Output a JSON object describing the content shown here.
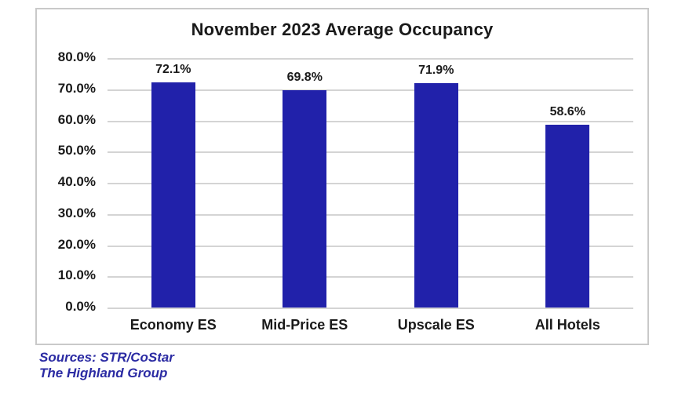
{
  "chart_data": {
    "type": "bar",
    "title": "November 2023 Average Occupancy",
    "categories": [
      "Economy ES",
      "Mid-Price ES",
      "Upscale ES",
      "All Hotels"
    ],
    "values": [
      72.1,
      69.8,
      71.9,
      58.6
    ],
    "value_labels": [
      "72.1%",
      "69.8%",
      "71.9%",
      "58.6%"
    ],
    "xlabel": "",
    "ylabel": "",
    "ylim": [
      0,
      80
    ],
    "ytick_step": 10,
    "ytick_labels": [
      "0.0%",
      "10.0%",
      "20.0%",
      "30.0%",
      "40.0%",
      "50.0%",
      "60.0%",
      "70.0%",
      "80.0%"
    ],
    "grid": true,
    "legend_position": "none",
    "bar_color": "#2121AA"
  },
  "footer": {
    "source_line1": "Sources: STR/CoStar",
    "source_line2": "The Highland Group"
  },
  "colors": {
    "bar": "#2121AA",
    "gridline": "#D4D4D4",
    "frame_border": "#C9C9C9",
    "source_text": "#2B2BA3",
    "text": "#1A1A1A"
  }
}
